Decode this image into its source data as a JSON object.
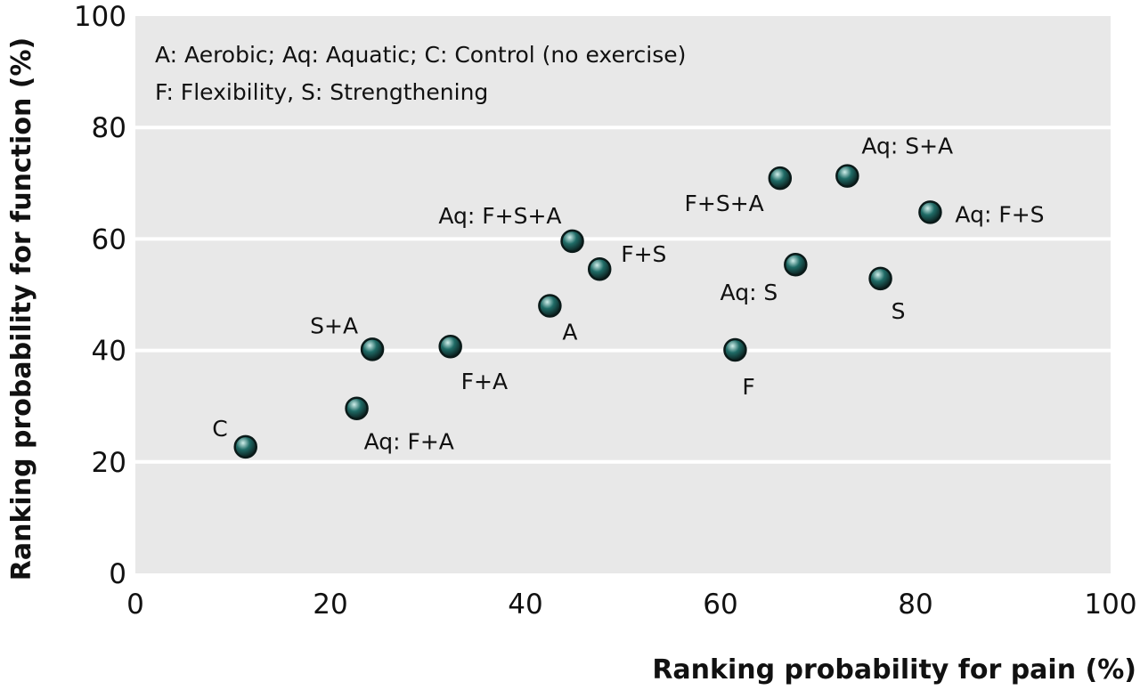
{
  "colors": {
    "plot_background": "#e8e8e8",
    "gridline": "#ffffff",
    "marker_fill": "#1f6b66",
    "marker_highlight": "#cfeeea",
    "marker_stroke": "#0a1a19"
  },
  "chart_data": {
    "type": "scatter",
    "xlabel": "Ranking probability for pain (%)",
    "ylabel": "Ranking probability for function (%)",
    "xlim": [
      0,
      100
    ],
    "ylim": [
      0,
      100
    ],
    "x_ticks": [
      0,
      20,
      40,
      60,
      80,
      100
    ],
    "y_ticks": [
      0,
      20,
      40,
      60,
      80,
      100
    ],
    "grid": "horizontal",
    "legend_placement": "top-left",
    "legend": [
      "A: Aerobic; Aq: Aquatic; C: Control (no exercise)",
      "F: Flexibility, S: Strengthening"
    ],
    "points": [
      {
        "label": "C",
        "x": 11.3,
        "y": 22.7
      },
      {
        "label": "Aq: F+A",
        "x": 22.7,
        "y": 29.6
      },
      {
        "label": "S+A",
        "x": 24.3,
        "y": 40.2
      },
      {
        "label": "F+A",
        "x": 32.3,
        "y": 40.7
      },
      {
        "label": "A",
        "x": 42.5,
        "y": 48.0
      },
      {
        "label": "Aq: F+S+A",
        "x": 44.8,
        "y": 59.6
      },
      {
        "label": "F+S",
        "x": 47.6,
        "y": 54.6
      },
      {
        "label": "F",
        "x": 61.5,
        "y": 40.1
      },
      {
        "label": "F+S+A",
        "x": 66.1,
        "y": 70.9
      },
      {
        "label": "Aq: S",
        "x": 67.7,
        "y": 55.4
      },
      {
        "label": "Aq: S+A",
        "x": 73.0,
        "y": 71.3
      },
      {
        "label": "S",
        "x": 76.4,
        "y": 52.9
      },
      {
        "label": "Aq: F+S",
        "x": 81.5,
        "y": 64.8
      }
    ]
  }
}
